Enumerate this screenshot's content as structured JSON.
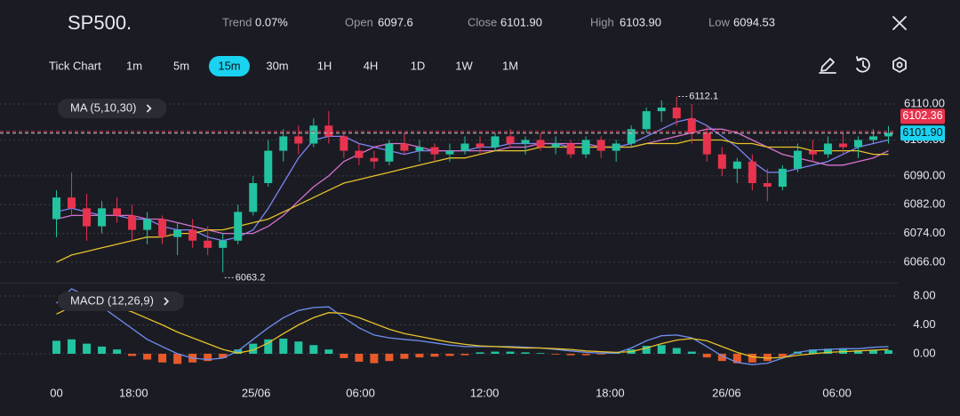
{
  "header": {
    "symbol": "SP500.",
    "stats": [
      {
        "label": "Trend",
        "value": "0.07%"
      },
      {
        "label": "Open",
        "value": "6097.6"
      },
      {
        "label": "Close",
        "value": "6101.90"
      },
      {
        "label": "High",
        "value": "6103.90"
      },
      {
        "label": "Low",
        "value": "6094.53"
      }
    ]
  },
  "toolbar": {
    "chart_type": "Tick Chart",
    "timeframes": [
      "1m",
      "5m",
      "15m",
      "30m",
      "1H",
      "4H",
      "1D",
      "1W",
      "1M"
    ],
    "active_index": 2
  },
  "chart_data": [
    {
      "type": "candlestick",
      "indicator": "MA (5,10,30)",
      "xlim": [
        -0.5,
        55.5
      ],
      "xticks": [
        {
          "value": 0,
          "label": "00"
        },
        {
          "value": 5.1,
          "label": "18:00"
        },
        {
          "value": 13.2,
          "label": "25/06"
        },
        {
          "value": 20.1,
          "label": "06:00"
        },
        {
          "value": 28.3,
          "label": "12:00"
        },
        {
          "value": 36.6,
          "label": "18:00"
        },
        {
          "value": 44.3,
          "label": "26/06"
        },
        {
          "value": 51.6,
          "label": "06:00"
        }
      ],
      "ylim": [
        6062,
        6113
      ],
      "yticks": [
        {
          "value": 6066,
          "label": "6066.00"
        },
        {
          "value": 6074,
          "label": "6074.00"
        },
        {
          "value": 6082,
          "label": "6082.00"
        },
        {
          "value": 6090,
          "label": "6090.00"
        },
        {
          "value": 6100,
          "label": "6100.00"
        },
        {
          "value": 6110,
          "label": "6110.00"
        }
      ],
      "grid": true,
      "up_color": "#22c3a0",
      "down_color": "#e8334e",
      "candles": [
        [
          6078,
          6086,
          6073,
          6084
        ],
        [
          6084,
          6091,
          6079,
          6081
        ],
        [
          6081,
          6085,
          6072,
          6076
        ],
        [
          6076,
          6083,
          6074,
          6081
        ],
        [
          6081,
          6084,
          6077,
          6079
        ],
        [
          6079,
          6082,
          6072,
          6075
        ],
        [
          6075,
          6080,
          6071,
          6078
        ],
        [
          6078,
          6079,
          6071,
          6073
        ],
        [
          6073,
          6077,
          6068,
          6075
        ],
        [
          6075,
          6078,
          6070,
          6072
        ],
        [
          6072,
          6076,
          6068,
          6070
        ],
        [
          6070,
          6074,
          6063.2,
          6072
        ],
        [
          6072,
          6082,
          6071,
          6080
        ],
        [
          6080,
          6090,
          6079,
          6088
        ],
        [
          6088,
          6100,
          6087,
          6097
        ],
        [
          6097,
          6103,
          6094,
          6101
        ],
        [
          6101,
          6104,
          6096,
          6099
        ],
        [
          6099,
          6106,
          6098,
          6104
        ],
        [
          6104,
          6108,
          6099,
          6101
        ],
        [
          6101,
          6102,
          6095,
          6097
        ],
        [
          6097,
          6099,
          6093,
          6095
        ],
        [
          6095,
          6097,
          6092,
          6094
        ],
        [
          6094,
          6100,
          6093,
          6099
        ],
        [
          6099,
          6102,
          6096,
          6097
        ],
        [
          6097,
          6100,
          6094,
          6098
        ],
        [
          6098,
          6099,
          6094,
          6096
        ],
        [
          6096,
          6099,
          6094,
          6097
        ],
        [
          6097,
          6101,
          6096,
          6099
        ],
        [
          6099,
          6101,
          6096,
          6098
        ],
        [
          6098,
          6102,
          6097,
          6101
        ],
        [
          6101,
          6103,
          6098,
          6099
        ],
        [
          6099,
          6101,
          6096,
          6100
        ],
        [
          6100,
          6102,
          6097,
          6098
        ],
        [
          6098,
          6101,
          6096,
          6099
        ],
        [
          6099,
          6100,
          6095,
          6096
        ],
        [
          6096,
          6101,
          6095,
          6100
        ],
        [
          6100,
          6101,
          6095,
          6097
        ],
        [
          6097,
          6100,
          6094,
          6099
        ],
        [
          6099,
          6104,
          6098,
          6103
        ],
        [
          6103,
          6109,
          6102,
          6108
        ],
        [
          6108,
          6111,
          6105,
          6109
        ],
        [
          6109,
          6112.1,
          6104,
          6106
        ],
        [
          6106,
          6110,
          6099,
          6102
        ],
        [
          6102,
          6104,
          6094,
          6096
        ],
        [
          6096,
          6098,
          6090,
          6092
        ],
        [
          6092,
          6095,
          6088,
          6094
        ],
        [
          6094,
          6096,
          6086,
          6088
        ],
        [
          6088,
          6092,
          6083,
          6087
        ],
        [
          6087,
          6093,
          6086,
          6092
        ],
        [
          6092,
          6099,
          6091,
          6097
        ],
        [
          6097,
          6100,
          6094,
          6096
        ],
        [
          6096,
          6101,
          6095,
          6099
        ],
        [
          6099,
          6102,
          6096,
          6098
        ],
        [
          6098,
          6101,
          6095,
          6100
        ],
        [
          6100,
          6103,
          6099,
          6101
        ],
        [
          6101,
          6103.9,
          6099,
          6101.9
        ]
      ],
      "series": [
        {
          "color": "#7f83f5",
          "values": [
            6080,
            6081,
            6080,
            6079,
            6079,
            6078,
            6078,
            6076,
            6075,
            6075,
            6073,
            6072,
            6073,
            6075,
            6081,
            6088,
            6095,
            6100,
            6101,
            6101,
            6099,
            6098,
            6097,
            6096,
            6097,
            6097,
            6097,
            6097,
            6098,
            6098,
            6099,
            6099,
            6099,
            6099,
            6098,
            6098,
            6098,
            6098,
            6099,
            6101,
            6103,
            6105,
            6106,
            6104,
            6101,
            6098,
            6094,
            6091,
            6091,
            6092,
            6093,
            6094,
            6096,
            6098,
            6099,
            6100
          ]
        },
        {
          "color": "#d672cf",
          "values": [
            6078,
            6079,
            6079,
            6079,
            6079,
            6079,
            6078,
            6078,
            6077,
            6076,
            6075,
            6074,
            6074,
            6074,
            6076,
            6079,
            6083,
            6087,
            6090,
            6094,
            6096,
            6098,
            6099,
            6099,
            6098,
            6097,
            6097,
            6097,
            6097,
            6097,
            6098,
            6098,
            6099,
            6099,
            6099,
            6099,
            6098,
            6098,
            6098,
            6099,
            6100,
            6101,
            6102,
            6103,
            6103,
            6102,
            6100,
            6098,
            6096,
            6095,
            6094,
            6093,
            6093,
            6094,
            6095,
            6097
          ]
        },
        {
          "color": "#e6c229",
          "values": [
            6066,
            6068,
            6069,
            6070,
            6071,
            6072,
            6073,
            6073,
            6074,
            6074,
            6075,
            6075,
            6076,
            6077,
            6078,
            6080,
            6082,
            6084,
            6086,
            6088,
            6089,
            6090,
            6091,
            6092,
            6093,
            6094,
            6095,
            6095,
            6096,
            6097,
            6097,
            6097,
            6098,
            6098,
            6098,
            6098,
            6098,
            6098,
            6098,
            6099,
            6099,
            6099,
            6100,
            6100,
            6100,
            6099,
            6099,
            6098,
            6098,
            6098,
            6097,
            6097,
            6097,
            6097,
            6096,
            6096
          ]
        }
      ],
      "price_lines": [
        {
          "value": 6102.36,
          "color": "#e8334e"
        },
        {
          "value": 6101.9,
          "label": "6101.90",
          "color": "#19d3f0"
        }
      ]
    },
    {
      "type": "macd",
      "indicator": "MACD (12,26,9)",
      "xlim": [
        -0.5,
        55.5
      ],
      "ylim": [
        -2,
        9.8
      ],
      "yticks": [
        {
          "value": 0,
          "label": "0.00"
        },
        {
          "value": 4,
          "label": "4.00"
        },
        {
          "value": 8,
          "label": "8.00"
        }
      ],
      "grid": true,
      "histogram": {
        "up_color": "#22c3a0",
        "down_color": "#e85a2a",
        "values": [
          1.8,
          2.0,
          1.4,
          1.0,
          0.6,
          -0.3,
          -0.8,
          -1.2,
          -1.4,
          -1.2,
          -1.0,
          -0.6,
          0.6,
          1.4,
          2.0,
          2.1,
          1.7,
          1.2,
          0.6,
          -0.6,
          -1.1,
          -1.3,
          -1.0,
          -0.7,
          -0.5,
          -0.4,
          -0.3,
          -0.2,
          0.2,
          0.3,
          0.3,
          0.2,
          0.1,
          -0.1,
          -0.2,
          -0.2,
          -0.1,
          0.2,
          0.6,
          1.1,
          1.2,
          0.8,
          0.3,
          -0.5,
          -1.0,
          -1.3,
          -1.2,
          -1.0,
          -0.4,
          0.3,
          0.6,
          0.7,
          0.6,
          0.5,
          0.5,
          0.5
        ]
      },
      "series": [
        {
          "color": "#6f8ff0",
          "values": [
            7.0,
            9.0,
            8.0,
            6.5,
            5.0,
            3.5,
            2.0,
            1.0,
            0.0,
            -0.6,
            -0.8,
            -0.6,
            0.4,
            2.0,
            3.6,
            5.0,
            6.0,
            6.4,
            6.5,
            5.0,
            3.6,
            2.6,
            2.2,
            2.0,
            1.8,
            1.5,
            1.2,
            1.0,
            1.0,
            1.0,
            1.0,
            0.9,
            0.8,
            0.6,
            0.4,
            0.2,
            0.1,
            0.1,
            0.8,
            1.8,
            2.5,
            2.6,
            2.2,
            1.0,
            -0.3,
            -1.2,
            -1.5,
            -1.3,
            -0.6,
            0.2,
            0.5,
            0.6,
            0.7,
            0.7,
            0.9,
            1.0
          ]
        },
        {
          "color": "#e6c229",
          "values": [
            5.5,
            6.5,
            7.0,
            6.9,
            6.5,
            5.8,
            4.9,
            4.0,
            3.0,
            2.2,
            1.4,
            0.6,
            0.1,
            0.5,
            1.5,
            2.8,
            4.0,
            5.0,
            5.7,
            5.6,
            5.0,
            4.2,
            3.4,
            2.8,
            2.4,
            2.0,
            1.6,
            1.3,
            1.1,
            1.0,
            0.9,
            0.8,
            0.8,
            0.7,
            0.6,
            0.4,
            0.3,
            0.2,
            0.3,
            0.8,
            1.4,
            1.9,
            2.1,
            1.8,
            1.0,
            0.2,
            -0.4,
            -0.6,
            -0.5,
            -0.2,
            0.0,
            0.2,
            0.3,
            0.4,
            0.5,
            0.6
          ]
        }
      ]
    }
  ]
}
